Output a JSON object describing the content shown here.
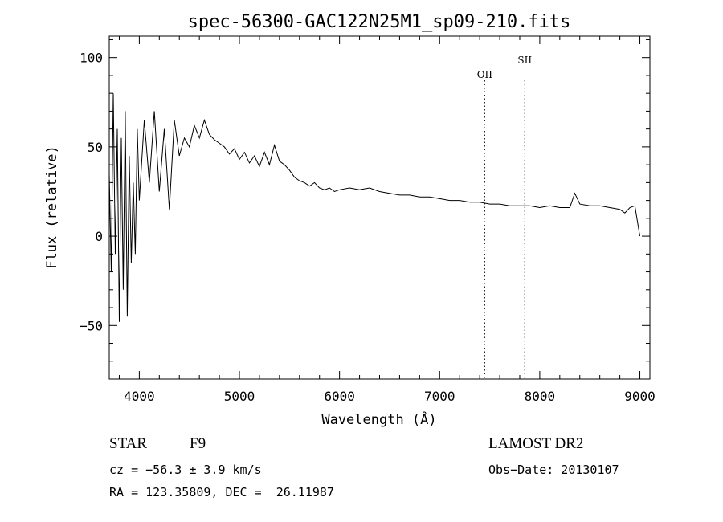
{
  "chart_data": {
    "type": "line",
    "title": "spec-56300-GAC122N25M1_sp09-210.fits",
    "xlabel": "Wavelength (Å)",
    "ylabel": "Flux (relative)",
    "xlim": [
      3700,
      9100
    ],
    "ylim": [
      -80,
      112
    ],
    "x_ticks": [
      4000,
      5000,
      6000,
      7000,
      8000,
      9000
    ],
    "y_ticks": [
      -50,
      0,
      50,
      100
    ],
    "grid": false,
    "line_color": "#000000",
    "series": [
      {
        "x": [
          3700,
          3720,
          3740,
          3760,
          3780,
          3800,
          3820,
          3840,
          3860,
          3880,
          3900,
          3920,
          3940,
          3960,
          3980,
          4000,
          4050,
          4100,
          4150,
          4200,
          4250,
          4300,
          4350,
          4400,
          4450,
          4500,
          4550,
          4600,
          4650,
          4700,
          4750,
          4800,
          4850,
          4900,
          4950,
          5000,
          5050,
          5100,
          5150,
          5200,
          5250,
          5300,
          5350,
          5400,
          5450,
          5500,
          5550,
          5600,
          5650,
          5700,
          5750,
          5800,
          5850,
          5900,
          5950,
          6000,
          6100,
          6200,
          6300,
          6400,
          6500,
          6600,
          6700,
          6800,
          6900,
          7000,
          7100,
          7200,
          7300,
          7400,
          7500,
          7600,
          7700,
          7800,
          7900,
          8000,
          8100,
          8200,
          8300,
          8350,
          8400,
          8500,
          8600,
          8700,
          8800,
          8850,
          8900,
          8950,
          9000
        ],
        "y": [
          35,
          -20,
          80,
          -10,
          60,
          -48,
          55,
          -30,
          70,
          -45,
          45,
          -15,
          30,
          -10,
          60,
          20,
          65,
          30,
          70,
          25,
          60,
          15,
          65,
          45,
          55,
          50,
          62,
          55,
          65,
          57,
          54,
          52,
          50,
          46,
          49,
          43,
          47,
          41,
          45,
          39,
          47,
          40,
          51,
          42,
          40,
          37,
          33,
          31,
          30,
          28,
          30,
          27,
          26,
          27,
          25,
          26,
          27,
          26,
          27,
          25,
          24,
          23,
          23,
          22,
          22,
          21,
          20,
          20,
          19,
          19,
          18,
          18,
          17,
          17,
          17,
          16,
          17,
          16,
          16,
          24,
          18,
          17,
          17,
          16,
          15,
          13,
          16,
          17,
          0
        ]
      }
    ],
    "annotations": [
      {
        "label": "OII",
        "x": 7450
      },
      {
        "label": "SII",
        "x": 7850
      }
    ]
  },
  "info": {
    "object_class": "STAR",
    "subclass": "F9",
    "survey": "LAMOST DR2",
    "cz": "cz = −56.3 ± 3.9 km/s",
    "obs_date": "Obs−Date: 20130107",
    "coords": "RA = 123.35809, DEC =  26.11987"
  }
}
